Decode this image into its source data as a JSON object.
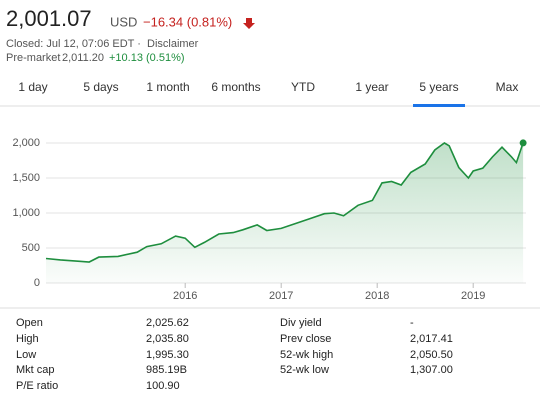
{
  "header": {
    "price": "2,001.07",
    "currency": "USD",
    "change": "−16.34 (0.81%)",
    "status": "Closed: Jul 12, 07:06 EDT ·",
    "disclaimer": "Disclaimer",
    "premarket_label": "Pre-market",
    "premarket_price": "2,011.20",
    "premarket_change": "+10.13 (0.51%)"
  },
  "tabs": {
    "items": [
      "1 day",
      "5 days",
      "1 month",
      "6 months",
      "YTD",
      "1 year",
      "5 years",
      "Max"
    ],
    "selected": 6
  },
  "chart_data": {
    "type": "line",
    "color": "#1e8e3e",
    "grid": true,
    "x": [
      2014.55,
      2014.7,
      2014.9,
      2015.0,
      2015.1,
      2015.3,
      2015.5,
      2015.6,
      2015.75,
      2015.9,
      2016.0,
      2016.1,
      2016.2,
      2016.35,
      2016.5,
      2016.6,
      2016.75,
      2016.85,
      2017.0,
      2017.15,
      2017.3,
      2017.45,
      2017.55,
      2017.65,
      2017.8,
      2017.95,
      2018.05,
      2018.15,
      2018.25,
      2018.35,
      2018.5,
      2018.6,
      2018.7,
      2018.75,
      2018.85,
      2018.95,
      2019.0,
      2019.1,
      2019.2,
      2019.3,
      2019.4,
      2019.45,
      2019.52
    ],
    "series": [
      {
        "values": [
          350,
          330,
          310,
          300,
          370,
          380,
          440,
          520,
          560,
          670,
          640,
          510,
          580,
          700,
          720,
          760,
          830,
          750,
          780,
          850,
          920,
          990,
          1000,
          960,
          1110,
          1180,
          1430,
          1450,
          1400,
          1580,
          1700,
          1900,
          2000,
          1960,
          1650,
          1500,
          1600,
          1640,
          1800,
          1940,
          1800,
          1720,
          2001.07
        ]
      }
    ],
    "xlim": [
      2014.55,
      2019.55
    ],
    "xticks": [
      2016,
      2017,
      2018,
      2019
    ],
    "ylim": [
      0,
      2200
    ],
    "yticks": [
      0,
      500,
      {
        "value": 1000,
        "label": "1,000"
      },
      {
        "value": 1500,
        "label": "1,500"
      },
      {
        "value": 2000,
        "label": "2,000"
      }
    ]
  },
  "stats": {
    "left": [
      [
        "Open",
        "2,025.62"
      ],
      [
        "High",
        "2,035.80"
      ],
      [
        "Low",
        "1,995.30"
      ],
      [
        "Mkt cap",
        "985.19B"
      ],
      [
        "P/E ratio",
        "100.90"
      ]
    ],
    "right": [
      [
        "Div yield",
        "-"
      ],
      [
        "Prev close",
        "2,017.41"
      ],
      [
        "52-wk high",
        "2,050.50"
      ],
      [
        "52-wk low",
        "1,307.00"
      ]
    ]
  }
}
